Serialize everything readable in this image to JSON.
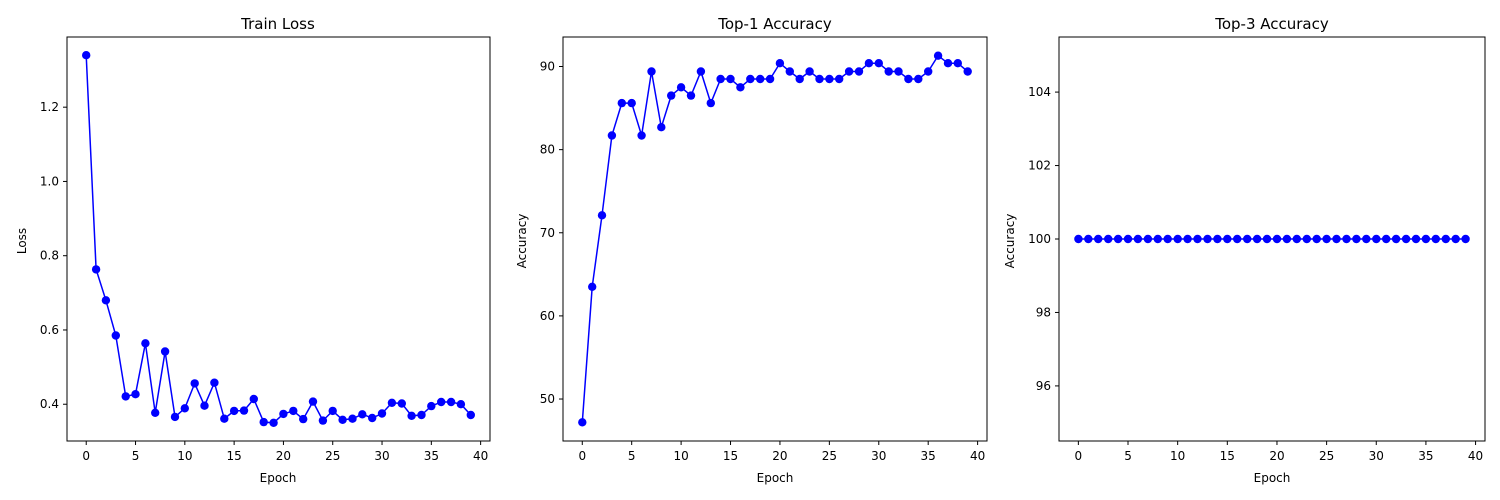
{
  "chart_data": [
    {
      "type": "line",
      "title": "Train Loss",
      "xlabel": "Epoch",
      "ylabel": "Loss",
      "xlim": [
        -1.95,
        40.95
      ],
      "ylim": [
        0.301,
        1.389
      ],
      "xticks": [
        0,
        5,
        10,
        15,
        20,
        25,
        30,
        35,
        40
      ],
      "yticks": [
        0.4,
        0.6,
        0.8,
        1.0,
        1.2
      ],
      "ytick_labels": [
        "0.4",
        "0.6",
        "0.8",
        "1.0",
        "1.2"
      ],
      "grid": false,
      "color": "#0000ff",
      "marker": "circle",
      "series": [
        {
          "x": [
            0,
            1,
            2,
            3,
            4,
            5,
            6,
            7,
            8,
            9,
            10,
            11,
            12,
            13,
            14,
            15,
            16,
            17,
            18,
            19,
            20,
            21,
            22,
            23,
            24,
            25,
            26,
            27,
            28,
            29,
            30,
            31,
            32,
            33,
            34,
            35,
            36,
            37,
            38,
            39
          ],
          "values": [
            1.34,
            0.763,
            0.68,
            0.585,
            0.421,
            0.427,
            0.564,
            0.377,
            0.542,
            0.366,
            0.389,
            0.456,
            0.396,
            0.458,
            0.361,
            0.382,
            0.383,
            0.414,
            0.352,
            0.35,
            0.374,
            0.382,
            0.36,
            0.407,
            0.356,
            0.382,
            0.358,
            0.361,
            0.373,
            0.363,
            0.375,
            0.404,
            0.402,
            0.369,
            0.371,
            0.395,
            0.406,
            0.406,
            0.4,
            0.371
          ]
        }
      ]
    },
    {
      "type": "line",
      "title": "Top-1 Accuracy",
      "xlabel": "Epoch",
      "ylabel": "Accuracy",
      "xlim": [
        -1.95,
        40.95
      ],
      "ylim": [
        44.95,
        93.55
      ],
      "xticks": [
        0,
        5,
        10,
        15,
        20,
        25,
        30,
        35,
        40
      ],
      "yticks": [
        50,
        60,
        70,
        80,
        90
      ],
      "ytick_labels": [
        "50",
        "60",
        "70",
        "80",
        "90"
      ],
      "grid": false,
      "color": "#0000ff",
      "marker": "circle",
      "series": [
        {
          "x": [
            0,
            1,
            2,
            3,
            4,
            5,
            6,
            7,
            8,
            9,
            10,
            11,
            12,
            13,
            14,
            15,
            16,
            17,
            18,
            19,
            20,
            21,
            22,
            23,
            24,
            25,
            26,
            27,
            28,
            29,
            30,
            31,
            32,
            33,
            34,
            35,
            36,
            37,
            38,
            39
          ],
          "values": [
            47.2,
            63.5,
            72.1,
            81.7,
            85.6,
            85.6,
            81.7,
            89.4,
            82.7,
            86.5,
            87.5,
            86.5,
            89.4,
            85.6,
            88.5,
            88.5,
            87.5,
            88.5,
            88.5,
            88.5,
            90.4,
            89.4,
            88.5,
            89.4,
            88.5,
            88.5,
            88.5,
            89.4,
            89.4,
            90.4,
            90.4,
            89.4,
            89.4,
            88.5,
            88.5,
            89.4,
            91.3,
            90.4,
            90.4,
            89.4
          ]
        }
      ]
    },
    {
      "type": "line",
      "title": "Top-3 Accuracy",
      "xlabel": "Epoch",
      "ylabel": "Accuracy",
      "xlim": [
        -1.95,
        40.95
      ],
      "ylim": [
        94.5,
        105.5
      ],
      "xticks": [
        0,
        5,
        10,
        15,
        20,
        25,
        30,
        35,
        40
      ],
      "yticks": [
        96,
        98,
        100,
        102,
        104
      ],
      "ytick_labels": [
        "96",
        "98",
        "100",
        "102",
        "104"
      ],
      "grid": false,
      "color": "#0000ff",
      "marker": "circle",
      "series": [
        {
          "x": [
            0,
            1,
            2,
            3,
            4,
            5,
            6,
            7,
            8,
            9,
            10,
            11,
            12,
            13,
            14,
            15,
            16,
            17,
            18,
            19,
            20,
            21,
            22,
            23,
            24,
            25,
            26,
            27,
            28,
            29,
            30,
            31,
            32,
            33,
            34,
            35,
            36,
            37,
            38,
            39
          ],
          "values": [
            100,
            100,
            100,
            100,
            100,
            100,
            100,
            100,
            100,
            100,
            100,
            100,
            100,
            100,
            100,
            100,
            100,
            100,
            100,
            100,
            100,
            100,
            100,
            100,
            100,
            100,
            100,
            100,
            100,
            100,
            100,
            100,
            100,
            100,
            100,
            100,
            100,
            100,
            100,
            100
          ]
        }
      ]
    }
  ]
}
